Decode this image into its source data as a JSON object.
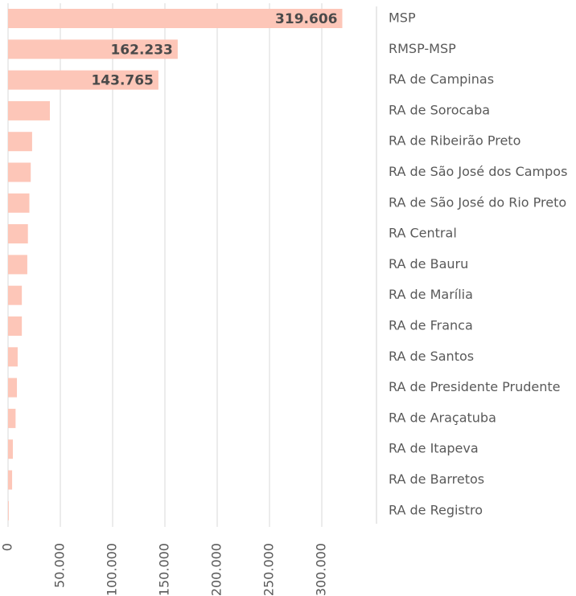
{
  "chart_data": {
    "type": "hbar",
    "categories": [
      "MSP",
      "RMSP-MSP",
      "RA de Campinas",
      "RA de Sorocaba",
      "RA de Ribeirão Preto",
      "RA de São José dos Campos",
      "RA de São José do Rio Preto",
      "RA Central",
      "RA de Bauru",
      "RA de Marília",
      "RA de Franca",
      "RA de Santos",
      "RA de Presidente Prudente",
      "RA de Araçatuba",
      "RA de Itapeva",
      "RA de Barretos",
      "RA de Registro"
    ],
    "values": [
      319606,
      162233,
      143765,
      40000,
      23000,
      21700,
      20400,
      19000,
      18400,
      13200,
      13200,
      9200,
      8500,
      7200,
      4600,
      3900,
      700
    ],
    "value_labels": [
      "319.606",
      "162.233",
      "143.765",
      null,
      null,
      null,
      null,
      null,
      null,
      null,
      null,
      null,
      null,
      null,
      null,
      null,
      null
    ],
    "color": "#fdc6b8",
    "xlim": [
      0,
      300000
    ],
    "xticks": [
      0,
      {
        "value": 50000,
        "label": "50.000"
      },
      {
        "value": 100000,
        "label": "100.000"
      },
      {
        "value": 150000,
        "label": "150.000"
      },
      {
        "value": 200000,
        "label": "200.000"
      },
      {
        "value": 250000,
        "label": "250.000"
      },
      {
        "value": 300000,
        "label": "300.000"
      }
    ],
    "grid": true
  }
}
